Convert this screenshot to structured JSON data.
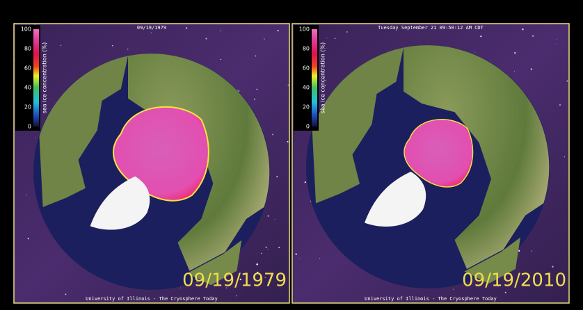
{
  "panels": [
    {
      "header": "09/19/1979",
      "colorbar": {
        "label": "sea ice concentration (%)",
        "ticks": [
          0,
          20,
          40,
          60,
          80,
          100
        ]
      },
      "date": "09/19/1979",
      "footer": "University of Illinois - The Cryosphere Today"
    },
    {
      "header": "Tuesday September 21 09:50:12 AM CDT",
      "colorbar": {
        "label": "sea ice concentration (%)",
        "ticks": [
          0,
          20,
          40,
          60,
          80,
          100
        ]
      },
      "date": "09/19/2010",
      "footer": "University of Illinois - The Cryosphere Today"
    }
  ]
}
